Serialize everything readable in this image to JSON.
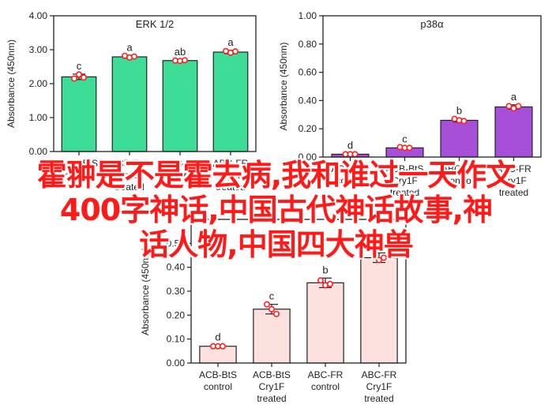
{
  "chart_data": [
    {
      "type": "bar",
      "title": "ERK 1/2",
      "ylabel": "Absorbance (450nm)",
      "ylim": [
        0,
        4
      ],
      "yticks": [
        "0.00",
        "1.00",
        "2.00",
        "3.00",
        "4.00"
      ],
      "categories": [
        [
          "ACB-BtS",
          "control"
        ],
        [
          "ACB-BtS",
          "Cry1F",
          "treated"
        ],
        [
          "ABC-FR",
          "control"
        ],
        [
          "ABC-FR",
          "Cry1F",
          "treated"
        ]
      ],
      "values": [
        2.2,
        2.79,
        2.68,
        2.93
      ],
      "errors": [
        0.08,
        0.04,
        0.02,
        0.05
      ],
      "points": [
        [
          2.15,
          2.27,
          2.18
        ],
        [
          2.82,
          2.77,
          2.8
        ],
        [
          2.68,
          2.67,
          2.69
        ],
        [
          2.96,
          2.91,
          2.95
        ]
      ],
      "letters": [
        "c",
        "a",
        "ab",
        "a"
      ],
      "bar_color": "#3ddc97"
    },
    {
      "type": "bar",
      "title": "p38α",
      "ylabel": "Absorbance (450nm)",
      "ylim": [
        0,
        1
      ],
      "yticks": [
        "0.00",
        "0.20",
        "0.40",
        "0.60",
        "0.80",
        "1.00"
      ],
      "categories": [
        [
          "ACB-BtS",
          "control"
        ],
        [
          "ACB-BtS",
          "Cry1F",
          "treated"
        ],
        [
          "ABC-FR",
          "control"
        ],
        [
          "ABC-FR",
          "Cry1F",
          "treated"
        ]
      ],
      "values": [
        0.02,
        0.065,
        0.26,
        0.355
      ],
      "errors": [
        0.005,
        0.006,
        0.012,
        0.015
      ],
      "points": [
        [
          0.02,
          0.02,
          0.02
        ],
        [
          0.07,
          0.065,
          0.065
        ],
        [
          0.27,
          0.26,
          0.255
        ],
        [
          0.36,
          0.345,
          0.36
        ]
      ],
      "letters": [
        "d",
        "c",
        "b",
        "a"
      ],
      "bar_color": "#a64fd9"
    },
    {
      "type": "bar",
      "title": "",
      "ylabel": "Absorbance (450nm)",
      "ylim": [
        0,
        0.6
      ],
      "yticks": [
        "0.00",
        "0.10",
        "0.20",
        "0.30",
        "0.40",
        "0.50"
      ],
      "categories": [
        [
          "ACB-BtS",
          "control"
        ],
        [
          "ACB-BtS",
          "Cry1F",
          "treated"
        ],
        [
          "ABC-FR",
          "control"
        ],
        [
          "ABC-FR",
          "Cry1F",
          "treated"
        ]
      ],
      "values": [
        0.07,
        0.225,
        0.335,
        0.44
      ],
      "errors": [
        0.004,
        0.02,
        0.02,
        0.02
      ],
      "points": [
        [
          0.07,
          0.07,
          0.07
        ],
        [
          0.245,
          0.225,
          0.205
        ],
        [
          0.345,
          0.325,
          0.33
        ],
        [
          0.455,
          0.43,
          0.44
        ]
      ],
      "letters": [
        "d",
        "c",
        "b",
        "a"
      ],
      "bar_color": "#fde1de"
    }
  ],
  "overlay": {
    "line1": "霍翀是不是霍去病,我和谁过一天作文",
    "line2": "400字神话,中国古代神话故事,神",
    "line3": "话人物,中国四大神兽"
  },
  "colors": {
    "point": "#ff2020",
    "overlay_text": "#ff1a1a",
    "axis": "#222222"
  }
}
